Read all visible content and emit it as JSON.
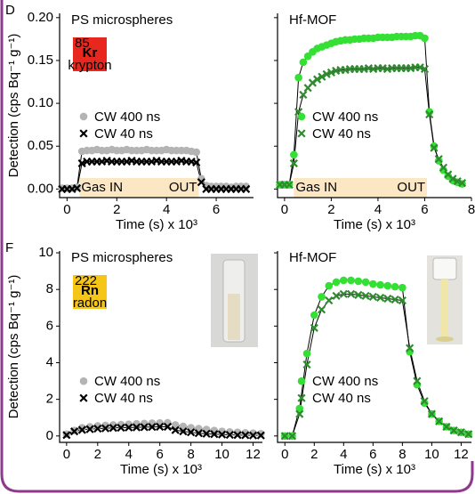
{
  "panels": [
    {
      "label": "D",
      "ylabel": "Detection (cps Bq⁻¹ g⁻¹)"
    },
    {
      "label": "F",
      "ylabel": "Detection (cps Bq⁻¹ g⁻¹)"
    }
  ],
  "chart_data": [
    {
      "type": "line",
      "title": "PS microspheres",
      "xlabel": "Time (s) x 10³",
      "x": [
        -0.2,
        0,
        0.2,
        0.4,
        0.6,
        0.8,
        1,
        1.2,
        1.4,
        1.6,
        1.8,
        2,
        2.2,
        2.4,
        2.6,
        2.8,
        3,
        3.2,
        3.4,
        3.6,
        3.8,
        4,
        4.2,
        4.4,
        4.6,
        4.8,
        5,
        5.2,
        5.4,
        5.6,
        5.8,
        6,
        6.2,
        6.4,
        6.6,
        6.8,
        7,
        7.2
      ],
      "series": [
        {
          "name": "CW 400 ns",
          "color": "#b4b4b4",
          "marker": "circle",
          "values": [
            0.001,
            0.001,
            0.001,
            0.002,
            0.044,
            0.045,
            0.045,
            0.046,
            0.045,
            0.045,
            0.046,
            0.045,
            0.045,
            0.046,
            0.045,
            0.045,
            0.045,
            0.046,
            0.045,
            0.045,
            0.045,
            0.046,
            0.045,
            0.045,
            0.045,
            0.045,
            0.044,
            0.043,
            0.012,
            0.004,
            0.003,
            0.003,
            0.003,
            0.003,
            0.002,
            0.003,
            0.003,
            0.003
          ]
        },
        {
          "name": "CW 40 ns",
          "color": "#000000",
          "marker": "x",
          "values": [
            0,
            0,
            0,
            0.001,
            0.03,
            0.032,
            0.032,
            0.032,
            0.032,
            0.033,
            0.032,
            0.032,
            0.032,
            0.032,
            0.033,
            0.032,
            0.032,
            0.032,
            0.032,
            0.033,
            0.032,
            0.032,
            0.032,
            0.032,
            0.033,
            0.032,
            0.032,
            0.031,
            0.008,
            0,
            0,
            0,
            0,
            0,
            0,
            0,
            0,
            0
          ]
        }
      ],
      "xlim": [
        -0.3,
        7.5
      ],
      "xticks": [
        0,
        2,
        4,
        6
      ],
      "ylim": [
        -0.01,
        0.205
      ],
      "yticks": [
        {
          "value": 0,
          "label": "0.00"
        },
        {
          "value": 0.05,
          "label": "0.05"
        },
        {
          "value": 0.1,
          "label": "0.10"
        },
        {
          "value": 0.15,
          "label": "0.15"
        },
        {
          "value": 0.2,
          "label": "0.20"
        }
      ],
      "show_ytick_labels": true,
      "legend": "center-left",
      "span": [
        0.5,
        5.3
      ],
      "span_labels": [
        "Gas IN",
        "OUT"
      ],
      "element": {
        "mass": "85",
        "symbol": "Kr",
        "name": "krypton",
        "color": "#e8281e"
      }
    },
    {
      "type": "line",
      "title": "Hf-MOF",
      "xlabel": "Time (s) x 10³",
      "x": [
        -0.2,
        0,
        0.2,
        0.4,
        0.6,
        0.8,
        1,
        1.2,
        1.4,
        1.6,
        1.8,
        2,
        2.2,
        2.4,
        2.6,
        2.8,
        3,
        3.2,
        3.4,
        3.6,
        3.8,
        4,
        4.2,
        4.4,
        4.6,
        4.8,
        5,
        5.2,
        5.4,
        5.6,
        5.8,
        6,
        6.2,
        6.4,
        6.6,
        6.8,
        7,
        7.2,
        7.4,
        7.6
      ],
      "series": [
        {
          "name": "CW 400 ns",
          "color": "#33e033",
          "marker": "circle",
          "values": [
            0.005,
            0.005,
            0.005,
            0.04,
            0.13,
            0.148,
            0.155,
            0.16,
            0.164,
            0.166,
            0.168,
            0.17,
            0.172,
            0.173,
            0.174,
            0.174,
            0.175,
            0.175,
            0.176,
            0.176,
            0.176,
            0.177,
            0.177,
            0.177,
            0.177,
            0.178,
            0.178,
            0.178,
            0.178,
            0.179,
            0.179,
            0.176,
            0.09,
            0.05,
            0.033,
            0.022,
            0.015,
            0.01,
            0.008,
            0.006
          ]
        },
        {
          "name": "CW 40 ns",
          "color": "#2e8b2e",
          "marker": "x",
          "values": [
            0.005,
            0.005,
            0.005,
            0.03,
            0.09,
            0.11,
            0.118,
            0.124,
            0.128,
            0.131,
            0.134,
            0.136,
            0.138,
            0.139,
            0.139,
            0.14,
            0.14,
            0.14,
            0.14,
            0.141,
            0.14,
            0.141,
            0.141,
            0.14,
            0.141,
            0.141,
            0.141,
            0.141,
            0.141,
            0.142,
            0.142,
            0.14,
            0.087,
            0.048,
            0.035,
            0.025,
            0.017,
            0.012,
            0.009,
            0.007
          ]
        }
      ],
      "xlim": [
        -0.3,
        8.0
      ],
      "xticks": [
        0,
        2,
        4,
        6,
        8
      ],
      "ylim": [
        -0.01,
        0.205
      ],
      "yticks": [
        {
          "value": 0,
          "label": "0.00"
        },
        {
          "value": 0.05,
          "label": "0.05"
        },
        {
          "value": 0.1,
          "label": "0.10"
        },
        {
          "value": 0.15,
          "label": "0.15"
        },
        {
          "value": 0.2,
          "label": "0.20"
        }
      ],
      "show_ytick_labels": false,
      "legend": "center-left",
      "span": [
        0.4,
        6.1
      ],
      "span_labels": [
        "Gas IN",
        "OUT"
      ]
    },
    {
      "type": "line",
      "title": "PS microspheres",
      "xlabel": "Time (s) x 10³",
      "x": [
        0,
        0.5,
        1,
        1.5,
        2,
        2.5,
        3,
        3.5,
        4,
        4.5,
        5,
        5.5,
        6,
        6.5,
        7,
        7.5,
        8,
        8.5,
        9,
        9.5,
        10,
        10.5,
        11,
        11.5,
        12,
        12.5
      ],
      "series": [
        {
          "name": "CW 400 ns",
          "color": "#b4b4b4",
          "marker": "circle",
          "values": [
            0.1,
            0.3,
            0.45,
            0.5,
            0.55,
            0.58,
            0.6,
            0.62,
            0.64,
            0.66,
            0.68,
            0.7,
            0.71,
            0.72,
            0.6,
            0.52,
            0.45,
            0.4,
            0.35,
            0.3,
            0.25,
            0.22,
            0.2,
            0.17,
            0.15,
            0.12
          ]
        },
        {
          "name": "CW 40 ns",
          "color": "#000000",
          "marker": "x",
          "values": [
            0.05,
            0.25,
            0.33,
            0.37,
            0.4,
            0.42,
            0.44,
            0.45,
            0.46,
            0.47,
            0.48,
            0.49,
            0.5,
            0.5,
            0.32,
            0.25,
            0.2,
            0.15,
            0.12,
            0.1,
            0.08,
            0.06,
            0.05,
            0.04,
            0.03,
            0.03
          ]
        }
      ],
      "xlim": [
        -0.45,
        12.6
      ],
      "xticks": [
        0,
        2,
        4,
        6,
        8,
        10,
        12
      ],
      "ylim": [
        -0.35,
        10.1
      ],
      "yticks": [
        0,
        2,
        4,
        6,
        8,
        10
      ],
      "show_ytick_labels": true,
      "legend": "lower-left",
      "element": {
        "mass": "222",
        "symbol": "Rn",
        "name": "radon",
        "color": "#f5c518"
      }
    },
    {
      "type": "line",
      "title": "Hf-MOF",
      "xlabel": "Time (s) x 10³",
      "x": [
        0,
        0.5,
        1,
        1.5,
        2,
        2.5,
        3,
        3.5,
        4,
        4.5,
        5,
        5.5,
        6,
        6.5,
        7,
        7.5,
        8,
        8.5,
        9,
        9.5,
        10,
        10.5,
        11,
        11.5,
        12,
        12.5
      ],
      "series": [
        {
          "name": "CW 400 ns",
          "color": "#33e033",
          "marker": "circle",
          "values": [
            0,
            0,
            1.5,
            4.5,
            6.6,
            7.6,
            8.2,
            8.4,
            8.5,
            8.5,
            8.45,
            8.4,
            8.3,
            8.25,
            8.2,
            8.15,
            8.1,
            4.6,
            2.8,
            1.8,
            1.2,
            0.8,
            0.5,
            0.3,
            0.2,
            0.1
          ]
        },
        {
          "name": "CW 40 ns",
          "color": "#2e8b2e",
          "marker": "x",
          "values": [
            0,
            0,
            1.2,
            3.9,
            5.9,
            6.9,
            7.4,
            7.65,
            7.75,
            7.75,
            7.7,
            7.65,
            7.6,
            7.55,
            7.5,
            7.45,
            7.4,
            4.8,
            3.0,
            1.9,
            1.2,
            0.8,
            0.5,
            0.3,
            0.2,
            0.1
          ]
        }
      ],
      "xlim": [
        -0.5,
        12.7
      ],
      "xticks": [
        0,
        2,
        4,
        6,
        8,
        10,
        12
      ],
      "ylim": [
        -0.35,
        10.1
      ],
      "yticks": [
        0,
        2,
        4,
        6,
        8,
        10
      ],
      "show_ytick_labels": false,
      "legend": "lower-left"
    }
  ]
}
